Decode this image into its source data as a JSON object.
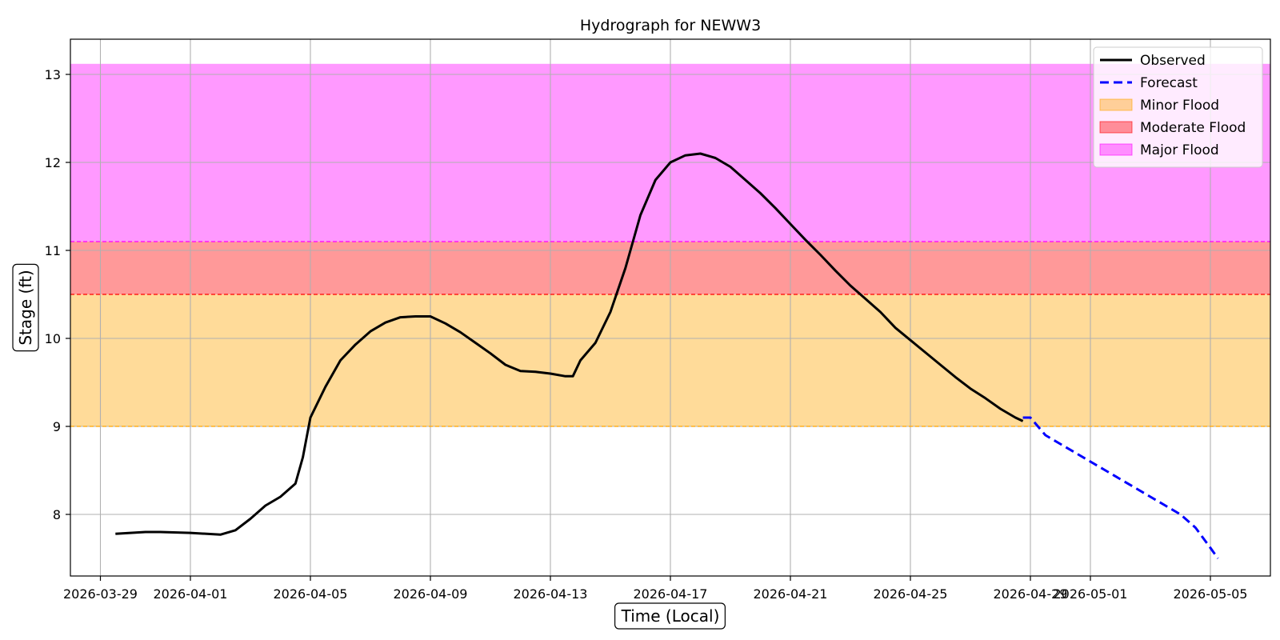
{
  "chart_data": {
    "type": "line",
    "title": "Hydrograph for NEWW3",
    "xlabel": "Time (Local)",
    "ylabel": "Stage (ft)",
    "xlim": [
      "2026-03-28",
      "2026-05-07"
    ],
    "ylim": [
      7.3,
      13.4
    ],
    "x_ticks": [
      "2026-03-29",
      "2026-04-01",
      "2026-04-05",
      "2026-04-09",
      "2026-04-13",
      "2026-04-17",
      "2026-04-21",
      "2026-04-25",
      "2026-04-29",
      "2026-05-01",
      "2026-05-05"
    ],
    "x_tick_labels": [
      "2026-03-29",
      "2026-04-01",
      "2026-04-05",
      "2026-04-09",
      "2026-04-13",
      "2026-04-17",
      "2026-04-21",
      "2026-04-25",
      "2026-04-29",
      "2026-05-01",
      "2026-05-05"
    ],
    "y_ticks": [
      8,
      9,
      10,
      11,
      12,
      13
    ],
    "y_tick_labels": [
      "8",
      "9",
      "10",
      "11",
      "12",
      "13"
    ],
    "grid": true,
    "legend_position": "top-right",
    "bands": [
      {
        "name": "Minor Flood",
        "from": 9.0,
        "to": 10.5,
        "color": "#ffa500",
        "threshold_color": "#ffa500"
      },
      {
        "name": "Moderate Flood",
        "from": 10.5,
        "to": 11.1,
        "color": "#ff0000",
        "threshold_color": "#ff0000"
      },
      {
        "name": "Major Flood",
        "from": 11.1,
        "to": 13.12,
        "color": "#ff00ff",
        "threshold_color": "#ff00ff"
      }
    ],
    "series": [
      {
        "name": "Observed",
        "color": "#000000",
        "style": "solid",
        "x": [
          "2026-03-29 12:00",
          "2026-03-30 12:00",
          "2026-03-31 00:00",
          "2026-04-01 00:00",
          "2026-04-02 00:00",
          "2026-04-02 12:00",
          "2026-04-03 00:00",
          "2026-04-03 12:00",
          "2026-04-04 00:00",
          "2026-04-04 12:00",
          "2026-04-04 18:00",
          "2026-04-05 00:00",
          "2026-04-05 12:00",
          "2026-04-06 00:00",
          "2026-04-06 12:00",
          "2026-04-07 00:00",
          "2026-04-07 12:00",
          "2026-04-08 00:00",
          "2026-04-08 12:00",
          "2026-04-09 00:00",
          "2026-04-09 12:00",
          "2026-04-10 00:00",
          "2026-04-10 12:00",
          "2026-04-11 00:00",
          "2026-04-11 12:00",
          "2026-04-12 00:00",
          "2026-04-12 12:00",
          "2026-04-13 00:00",
          "2026-04-13 12:00",
          "2026-04-13 18:00",
          "2026-04-14 00:00",
          "2026-04-14 12:00",
          "2026-04-15 00:00",
          "2026-04-15 12:00",
          "2026-04-16 00:00",
          "2026-04-16 12:00",
          "2026-04-17 00:00",
          "2026-04-17 12:00",
          "2026-04-18 00:00",
          "2026-04-18 12:00",
          "2026-04-19 00:00",
          "2026-04-19 12:00",
          "2026-04-20 00:00",
          "2026-04-20 12:00",
          "2026-04-21 00:00",
          "2026-04-21 12:00",
          "2026-04-22 00:00",
          "2026-04-22 12:00",
          "2026-04-23 00:00",
          "2026-04-23 12:00",
          "2026-04-24 00:00",
          "2026-04-24 12:00",
          "2026-04-25 00:00",
          "2026-04-25 12:00",
          "2026-04-26 00:00",
          "2026-04-26 12:00",
          "2026-04-27 00:00",
          "2026-04-27 12:00",
          "2026-04-28 00:00",
          "2026-04-28 12:00",
          "2026-04-28 18:00"
        ],
        "y": [
          7.78,
          7.8,
          7.8,
          7.79,
          7.77,
          7.82,
          7.95,
          8.1,
          8.2,
          8.35,
          8.65,
          9.1,
          9.45,
          9.75,
          9.93,
          10.08,
          10.18,
          10.24,
          10.25,
          10.25,
          10.17,
          10.07,
          9.95,
          9.83,
          9.7,
          9.63,
          9.62,
          9.6,
          9.57,
          9.57,
          9.75,
          9.95,
          10.3,
          10.8,
          11.4,
          11.8,
          12.0,
          12.08,
          12.1,
          12.05,
          11.95,
          11.8,
          11.65,
          11.48,
          11.3,
          11.12,
          10.95,
          10.77,
          10.6,
          10.45,
          10.3,
          10.12,
          9.98,
          9.84,
          9.7,
          9.56,
          9.43,
          9.32,
          9.2,
          9.1,
          9.06
        ]
      },
      {
        "name": "Forecast",
        "color": "#0000ff",
        "style": "dashed",
        "x": [
          "2026-04-28 18:00",
          "2026-04-29 00:00",
          "2026-04-29 06:00",
          "2026-04-29 12:00",
          "2026-04-30 00:00",
          "2026-04-30 12:00",
          "2026-05-01 00:00",
          "2026-05-01 12:00",
          "2026-05-02 00:00",
          "2026-05-02 12:00",
          "2026-05-03 00:00",
          "2026-05-03 12:00",
          "2026-05-04 00:00",
          "2026-05-04 12:00",
          "2026-05-05 00:00",
          "2026-05-05 06:00"
        ],
        "y": [
          9.1,
          9.1,
          9.0,
          8.9,
          8.8,
          8.7,
          8.6,
          8.5,
          8.4,
          8.3,
          8.2,
          8.1,
          8.0,
          7.85,
          7.62,
          7.5
        ]
      }
    ]
  }
}
